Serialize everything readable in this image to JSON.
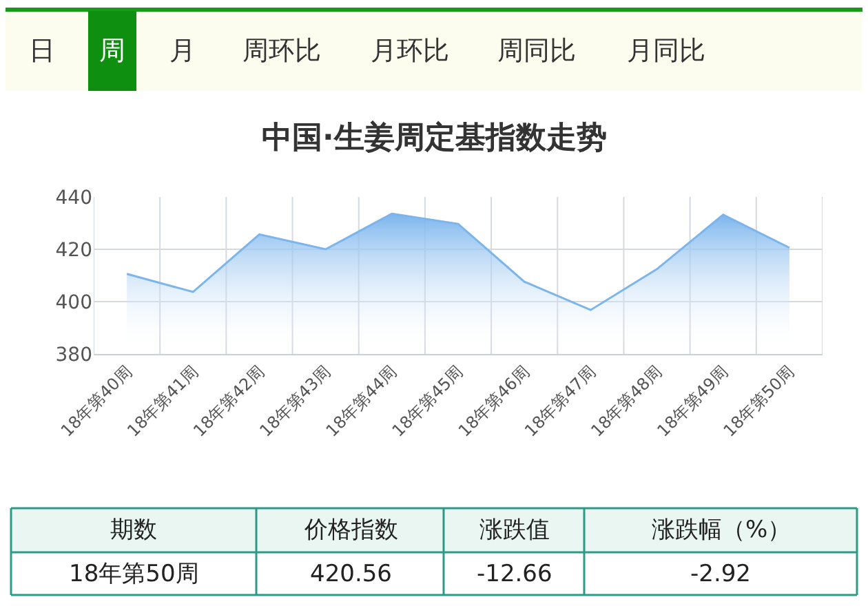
{
  "chart_data": {
    "type": "area",
    "title": "中国·生姜周定基指数走势",
    "categories": [
      "18年第40周",
      "18年第41周",
      "18年第42周",
      "18年第43周",
      "18年第44周",
      "18年第45周",
      "18年第46周",
      "18年第47周",
      "18年第48周",
      "18年第49周",
      "18年第50周"
    ],
    "series": [
      {
        "color": "#7cb5ec",
        "values": [
          410.6,
          403.7,
          425.7,
          420.0,
          433.6,
          429.7,
          407.6,
          396.8,
          412.4,
          433.2,
          420.6
        ]
      }
    ],
    "ylim": [
      380,
      440
    ],
    "yticks": [
      380,
      400,
      420,
      440
    ],
    "grid": true,
    "marker": "none",
    "annotations": [
      "日",
      "周",
      "月",
      "周环比",
      "月环比",
      "周同比",
      "月同比",
      "期数",
      "价格指数",
      "涨跌值",
      "涨跌幅（%）",
      "18年第50周",
      "420.56",
      "-12.66",
      "-2.92"
    ]
  }
}
